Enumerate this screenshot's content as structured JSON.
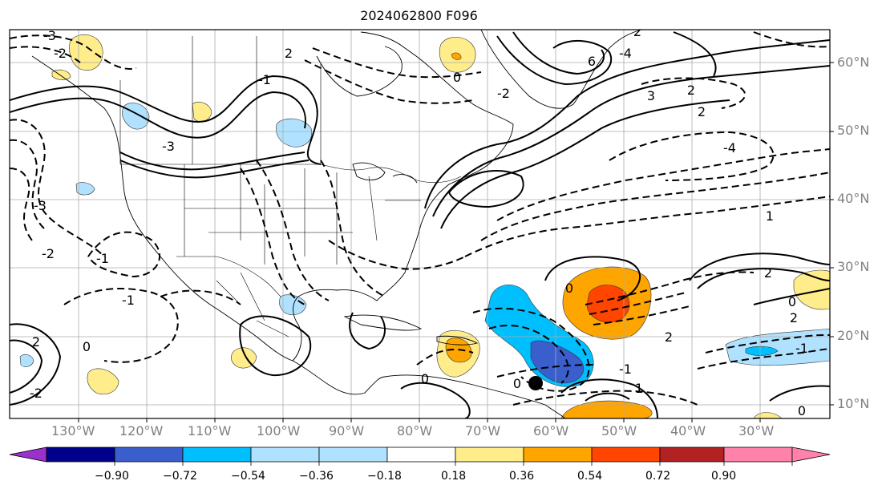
{
  "title": "2024062800 F096",
  "latitude_labels": [
    "60°N",
    "50°N",
    "40°N",
    "30°N",
    "20°N",
    "10°N"
  ],
  "longitude_labels": [
    "130°W",
    "120°W",
    "110°W",
    "100°W",
    "90°W",
    "80°W",
    "70°W",
    "60°W",
    "50°W",
    "40°W",
    "30°W"
  ],
  "colorbar": {
    "ticks": [
      "−0.90",
      "−0.72",
      "−0.54",
      "−0.36",
      "−0.18",
      "0.18",
      "0.36",
      "0.54",
      "0.72",
      "0.90"
    ],
    "colors": [
      "#9932cc",
      "#00008b",
      "#3a5fcd",
      "#00bfff",
      "#b0e2ff",
      "#ffffff",
      "#ffec8b",
      "#ffa500",
      "#ff4500",
      "#b22222",
      "#ff82ab"
    ]
  },
  "contour_labels": [
    "-3",
    "2",
    "6",
    "-4",
    "3",
    "2",
    "2",
    "-4",
    "2",
    "-3",
    "-1",
    "-2",
    "0",
    "-1",
    "0",
    "2",
    "0",
    "2",
    "-1",
    "1",
    "2",
    "0",
    "1",
    "-1",
    "-2",
    "2",
    "-2",
    "0",
    "-2",
    "0",
    "-1",
    "0",
    "-3"
  ],
  "marker": {
    "label": "storm-center",
    "lon": -63,
    "lat": 13
  }
}
